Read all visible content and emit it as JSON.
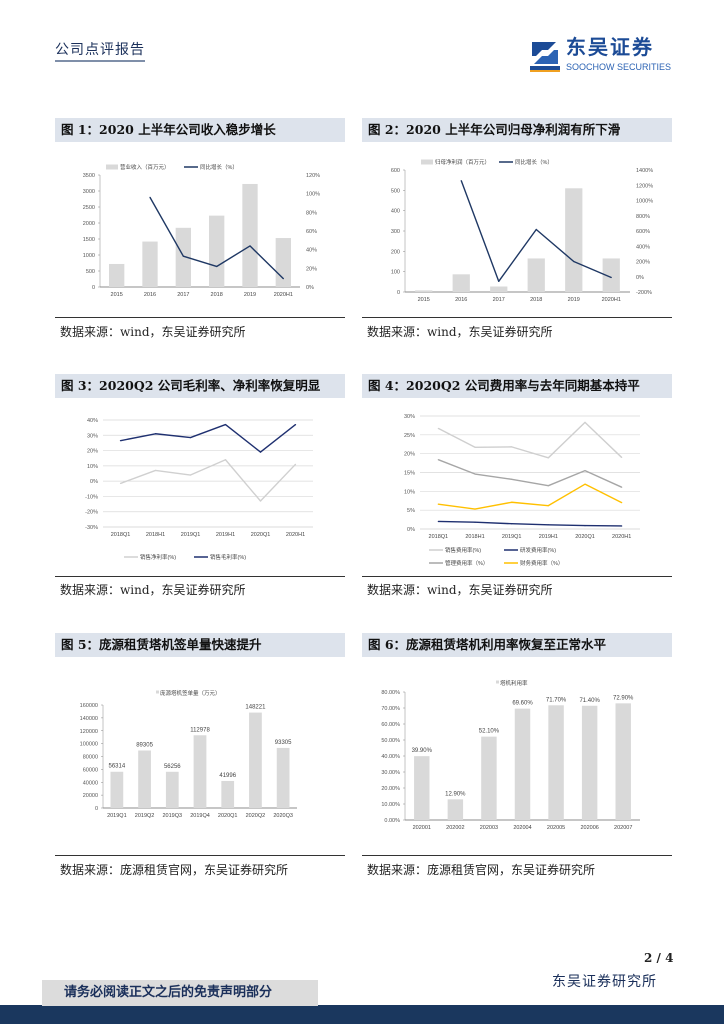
{
  "header": {
    "report_type": "公司点评报告",
    "logo_cn": "东吴证券",
    "logo_en": "SOOCHOW SECURITIES",
    "logo_mark": "SCS"
  },
  "figures": [
    {
      "title": "图 1：2020 上半年公司收入稳步增长",
      "source": "数据来源：wind，东吴证券研究所"
    },
    {
      "title": "图 2：2020 上半年公司归母净利润有所下滑",
      "source": "数据来源：wind，东吴证券研究所"
    },
    {
      "title": "图 3：2020Q2 公司毛利率、净利率恢复明显",
      "source": "数据来源：wind，东吴证券研究所"
    },
    {
      "title": "图 4：2020Q2 公司费用率与去年同期基本持平",
      "source": "数据来源：wind，东吴证券研究所"
    },
    {
      "title": "图 5：庞源租赁塔机签单量快速提升",
      "source": "数据来源：庞源租赁官网，东吴证券研究所"
    },
    {
      "title": "图 6：庞源租赁塔机利用率恢复至正常水平",
      "source": "数据来源：庞源租赁官网，东吴证券研究所"
    }
  ],
  "chart_data": [
    {
      "type": "bar",
      "categories": [
        "2015",
        "2016",
        "2017",
        "2018",
        "2019",
        "2020H1"
      ],
      "ylim": [
        0,
        3500
      ],
      "ystep": 500,
      "y2lim": [
        0,
        120
      ],
      "y2step": 20,
      "y2suffix": "%",
      "series": [
        {
          "name": "营业收入（百万元）",
          "kind": "bar",
          "axis": "y",
          "color": "#d9d9d9",
          "values": [
            720,
            1420,
            1850,
            2230,
            3220,
            1530
          ]
        },
        {
          "name": "同比增长（%）",
          "kind": "line",
          "axis": "y2",
          "color": "#1f3864",
          "values": [
            null,
            96,
            33,
            22,
            44,
            9
          ]
        }
      ]
    },
    {
      "type": "bar",
      "categories": [
        "2015",
        "2016",
        "2017",
        "2018",
        "2019",
        "2020H1"
      ],
      "ylim": [
        0,
        600
      ],
      "ystep": 100,
      "y2lim": [
        -200,
        1400
      ],
      "y2step": 200,
      "y2suffix": "%",
      "series": [
        {
          "name": "归母净利润（百万元）",
          "kind": "bar",
          "axis": "y",
          "color": "#d9d9d9",
          "values": [
            8,
            87,
            27,
            165,
            510,
            165
          ]
        },
        {
          "name": "同比增长（%）",
          "kind": "line",
          "axis": "y2",
          "color": "#1f3864",
          "values": [
            null,
            1260,
            -60,
            620,
            200,
            -10
          ]
        }
      ]
    },
    {
      "type": "line",
      "categories": [
        "2018Q1",
        "2018H1",
        "2019Q1",
        "2019H1",
        "2020Q1",
        "2020H1"
      ],
      "ylim": [
        -30,
        40
      ],
      "ystep": 10,
      "ysuffix": "%",
      "grid": true,
      "series": [
        {
          "name": "销售净利率(%)",
          "kind": "line",
          "axis": "y",
          "color": "#d0d0d0",
          "values": [
            -1.5,
            7,
            4,
            14,
            -13,
            11
          ]
        },
        {
          "name": "销售毛利率(%)",
          "kind": "line",
          "axis": "y",
          "color": "#1f3070",
          "values": [
            26.5,
            31,
            28.5,
            37,
            19,
            37
          ]
        }
      ]
    },
    {
      "type": "line",
      "categories": [
        "2018Q1",
        "2018H1",
        "2019Q1",
        "2019H1",
        "2020Q1",
        "2020H1"
      ],
      "ylim": [
        0,
        30
      ],
      "ystep": 5,
      "ysuffix": "%",
      "grid": true,
      "series": [
        {
          "name": "销售费用率(%)",
          "kind": "line",
          "axis": "y",
          "color": "#cfcfcf",
          "values": [
            26.7,
            21.7,
            21.8,
            18.9,
            28.3,
            19.0
          ]
        },
        {
          "name": "研发费用率(%)",
          "kind": "line",
          "axis": "y",
          "color": "#1f3070",
          "values": [
            2.0,
            1.8,
            1.4,
            1.1,
            0.9,
            0.8
          ]
        },
        {
          "name": "管理费用率（%）",
          "kind": "line",
          "axis": "y",
          "color": "#a6a6a6",
          "values": [
            18.4,
            14.6,
            13.2,
            11.5,
            15.5,
            11.1
          ]
        },
        {
          "name": "财务费用率（%）",
          "kind": "line",
          "axis": "y",
          "color": "#ffc000",
          "values": [
            6.6,
            5.3,
            7.1,
            6.2,
            11.9,
            7.0
          ]
        }
      ]
    },
    {
      "type": "bar",
      "categories": [
        "2019Q1",
        "2019Q2",
        "2019Q3",
        "2019Q4",
        "2020Q1",
        "2020Q2",
        "2020Q3"
      ],
      "ylim": [
        0,
        160000
      ],
      "ystep": 20000,
      "series": [
        {
          "name": "庞源塔机签单量（万元）",
          "kind": "bar",
          "axis": "y",
          "color": "#d9d9d9",
          "labels": true,
          "values": [
            56314,
            89305,
            56256,
            112978,
            41996,
            148221,
            93305
          ]
        }
      ]
    },
    {
      "type": "bar",
      "categories": [
        "202001",
        "202002",
        "202003",
        "202004",
        "202005",
        "202006",
        "202007"
      ],
      "ylim": [
        0,
        80
      ],
      "ystep": 10,
      "ysuffix": ".00%",
      "series": [
        {
          "name": "塔机利用率",
          "kind": "bar",
          "axis": "y",
          "color": "#d9d9d9",
          "labels": true,
          "labelsuffix": "%",
          "values": [
            39.9,
            12.9,
            52.1,
            69.6,
            71.7,
            71.4,
            72.9
          ]
        }
      ]
    }
  ],
  "footer": {
    "page": "2 / 4",
    "disclaimer": "请务必阅读正文之后的免责声明部分",
    "org": "东吴证券研究所"
  }
}
